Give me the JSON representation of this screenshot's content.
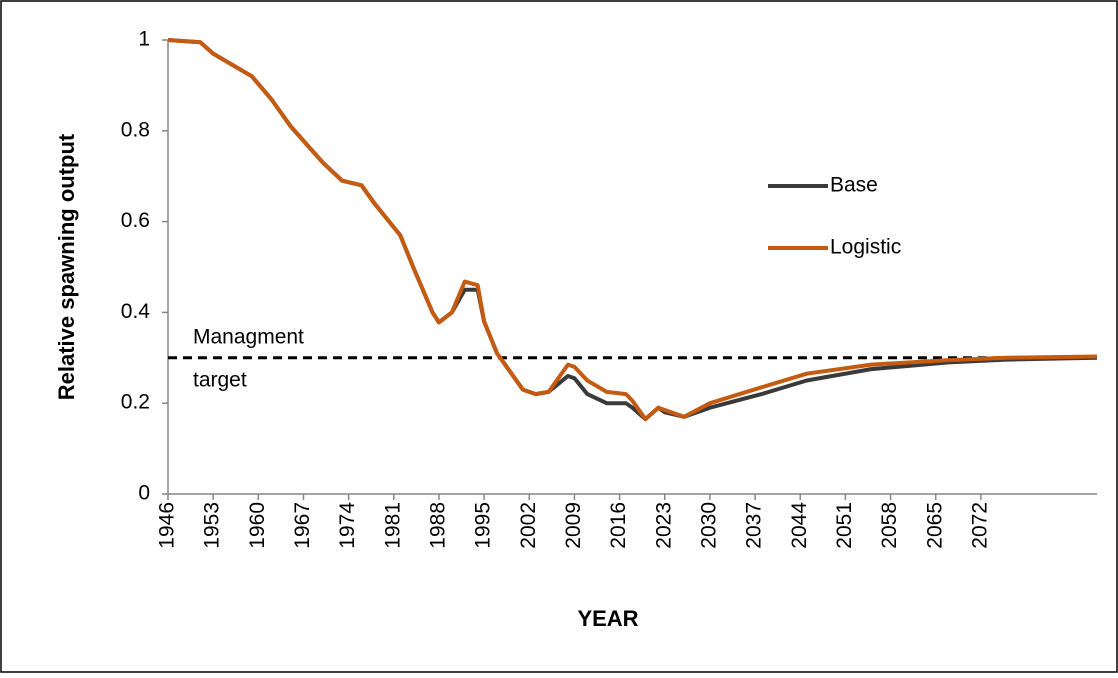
{
  "chart_data": {
    "type": "line",
    "x": [
      1946,
      1951,
      1953,
      1959,
      1962,
      1965,
      1970,
      1973,
      1976,
      1978,
      1982,
      1984,
      1987,
      1988,
      1990,
      1992,
      1994,
      1995,
      1997,
      2001,
      2003,
      2005,
      2008,
      2009,
      2011,
      2014,
      2017,
      2018,
      2020,
      2022,
      2023,
      2026,
      2030,
      2038,
      2045,
      2055,
      2067,
      2076,
      2090
    ],
    "series": [
      {
        "name": "Base",
        "color": "#3a3a3a",
        "values": [
          1,
          0.995,
          0.97,
          0.92,
          0.87,
          0.81,
          0.73,
          0.69,
          0.68,
          0.64,
          0.57,
          0.5,
          0.4,
          0.378,
          0.4,
          0.45,
          0.45,
          0.38,
          0.31,
          0.23,
          0.22,
          0.225,
          0.26,
          0.255,
          0.22,
          0.2,
          0.2,
          0.19,
          0.165,
          0.19,
          0.18,
          0.17,
          0.19,
          0.22,
          0.25,
          0.275,
          0.29,
          0.296,
          0.3
        ]
      },
      {
        "name": "Logistic",
        "color": "#c55a11",
        "values": [
          1,
          0.995,
          0.97,
          0.92,
          0.87,
          0.81,
          0.73,
          0.69,
          0.68,
          0.64,
          0.57,
          0.5,
          0.4,
          0.378,
          0.4,
          0.468,
          0.46,
          0.38,
          0.31,
          0.23,
          0.22,
          0.225,
          0.285,
          0.28,
          0.25,
          0.225,
          0.22,
          0.205,
          0.165,
          0.19,
          0.185,
          0.17,
          0.2,
          0.235,
          0.265,
          0.285,
          0.295,
          0.3,
          0.303
        ]
      }
    ],
    "xlabel": "YEAR",
    "ylabel": "Relative spawning output",
    "xlim": [
      1946,
      2090
    ],
    "xticks": [
      1946,
      1953,
      1960,
      1967,
      1974,
      1981,
      1988,
      1995,
      2002,
      2009,
      2016,
      2023,
      2030,
      2037,
      2044,
      2051,
      2058,
      2065,
      2072
    ],
    "ylim": [
      0,
      1
    ],
    "yticks": [
      0,
      0.2,
      0.4,
      0.6,
      0.8,
      1
    ],
    "target": 0.3,
    "target_label": [
      "Managment",
      "target"
    ]
  }
}
